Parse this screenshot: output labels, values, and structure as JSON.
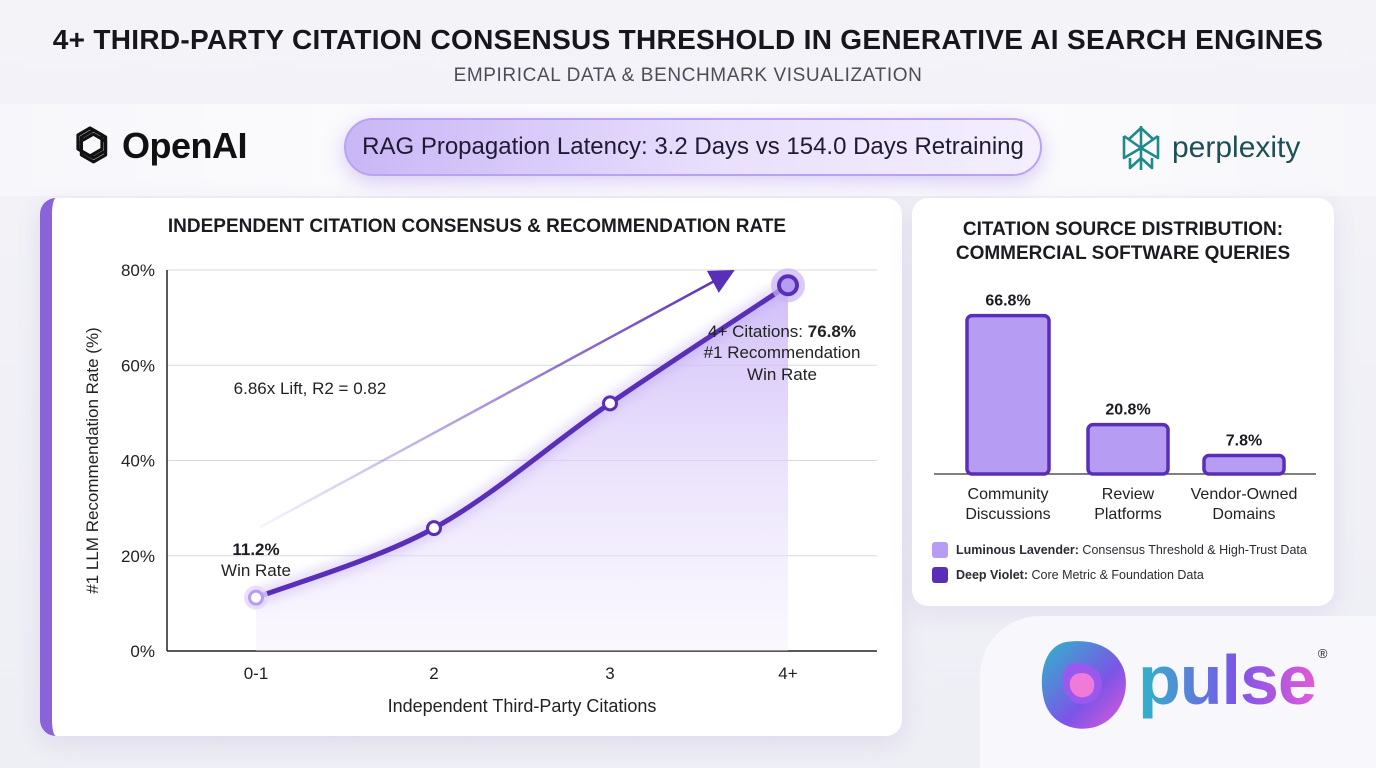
{
  "header": {
    "title": "4+ THIRD-PARTY CITATION CONSENSUS THRESHOLD IN GENERATIVE AI SEARCH ENGINES",
    "subtitle": "EMPIRICAL DATA & BENCHMARK VISUALIZATION"
  },
  "brands": {
    "left": "OpenAI",
    "right": "perplexity",
    "footer": "pulse",
    "footer_mark": "®"
  },
  "banner": {
    "text": "RAG Propagation Latency: 3.2 Days vs 154.0 Days Retraining"
  },
  "colors": {
    "lavender": "#b69cf2",
    "violet": "#5a2fb8",
    "lavender_fill": "#e8defd"
  },
  "icons": {
    "left_logo": "openai-logo-icon",
    "right_logo": "perplexity-logo-icon",
    "footer_logo": "pulse-logo-icon"
  },
  "chart_data": [
    {
      "type": "line",
      "title": "INDEPENDENT CITATION CONSENSUS & RECOMMENDATION RATE",
      "xlabel": "Independent Third-Party Citations",
      "ylabel": "#1 LLM Recommendation Rate (%)",
      "categories": [
        "0-1",
        "2",
        "3",
        "4+"
      ],
      "series": [
        {
          "values": [
            11.2,
            25.8,
            52,
            76.8
          ]
        }
      ],
      "ylim": [
        0,
        80
      ],
      "yticks": [
        "0%",
        "20%",
        "40%",
        "60%",
        "80%"
      ],
      "grid": true,
      "annotations": {
        "trend": "6.86x Lift, R2 = 0.82",
        "low_value": "11.2%",
        "low_label": "Win Rate",
        "high_prefix": "4+ Citations: ",
        "high_value": "76.8%",
        "high_line2": "#1 Recommendation",
        "high_line3": "Win Rate"
      }
    },
    {
      "type": "bar",
      "title_line1": "CITATION SOURCE DISTRIBUTION:",
      "title_line2": "COMMERCIAL SOFTWARE QUERIES",
      "categories": [
        [
          "Community",
          "Discussions"
        ],
        [
          "Review",
          "Platforms"
        ],
        [
          "Vendor-Owned",
          "Domains"
        ]
      ],
      "values": [
        66.8,
        20.8,
        7.8
      ],
      "value_labels": [
        "66.8%",
        "20.8%",
        "7.8%"
      ],
      "ylim": [
        0,
        70
      ],
      "legend": [
        {
          "label": "Luminous Lavender:",
          "desc": "Consensus Threshold & High-Trust Data",
          "color": "#b69cf2"
        },
        {
          "label": "Deep Violet:",
          "desc": "Core Metric & Foundation Data",
          "color": "#5a2fb8"
        }
      ]
    }
  ]
}
